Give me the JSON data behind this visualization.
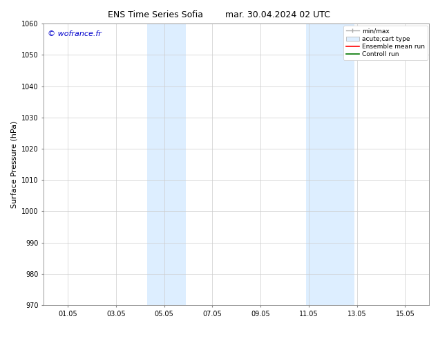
{
  "title_left": "ENS Time Series Sofia",
  "title_right": "mar. 30.04.2024 02 UTC",
  "ylabel": "Surface Pressure (hPa)",
  "ylim": [
    970,
    1060
  ],
  "yticks": [
    970,
    980,
    990,
    1000,
    1010,
    1020,
    1030,
    1040,
    1050,
    1060
  ],
  "xtick_labels": [
    "01.05",
    "03.05",
    "05.05",
    "07.05",
    "09.05",
    "11.05",
    "13.05",
    "15.05"
  ],
  "xtick_positions": [
    1,
    3,
    5,
    7,
    9,
    11,
    13,
    15
  ],
  "xlim": [
    0.0,
    16.0
  ],
  "shaded_bands": [
    {
      "xmin": 4.3,
      "xmax": 5.9,
      "color": "#ddeeff"
    },
    {
      "xmin": 10.9,
      "xmax": 12.9,
      "color": "#ddeeff"
    }
  ],
  "watermark": "© wofrance.fr",
  "watermark_color": "#0000cc",
  "bg_color": "#ffffff",
  "grid_color": "#cccccc",
  "title_fontsize": 9,
  "tick_fontsize": 7,
  "ylabel_fontsize": 8,
  "watermark_fontsize": 8,
  "legend_fontsize": 6.5
}
